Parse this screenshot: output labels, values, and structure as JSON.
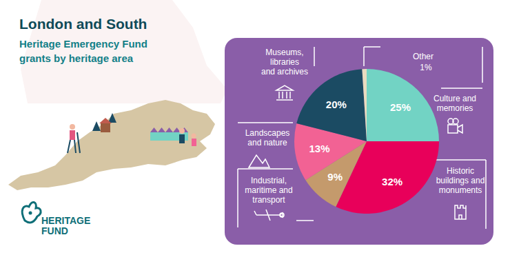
{
  "chart_data": {
    "type": "pie",
    "title": "London and South",
    "subtitle": "Heritage Emergency Fund grants by heritage area",
    "categories": [
      "Culture and memories",
      "Historic buildings and monuments",
      "Industrial, maritime and transport",
      "Landscapes and nature",
      "Museums, libraries and archives",
      "Other"
    ],
    "values": [
      25,
      32,
      9,
      13,
      20,
      1
    ],
    "value_labels": [
      "25%",
      "32%",
      "9%",
      "13%",
      "20%",
      "1%"
    ],
    "colors": [
      "#72d3c4",
      "#e8005a",
      "#c49a6c",
      "#f26294",
      "#1b4b63",
      "#e9dcc0"
    ],
    "data_labels": true,
    "annotations": [
      "HERITAGE",
      "FUND"
    ]
  }
}
